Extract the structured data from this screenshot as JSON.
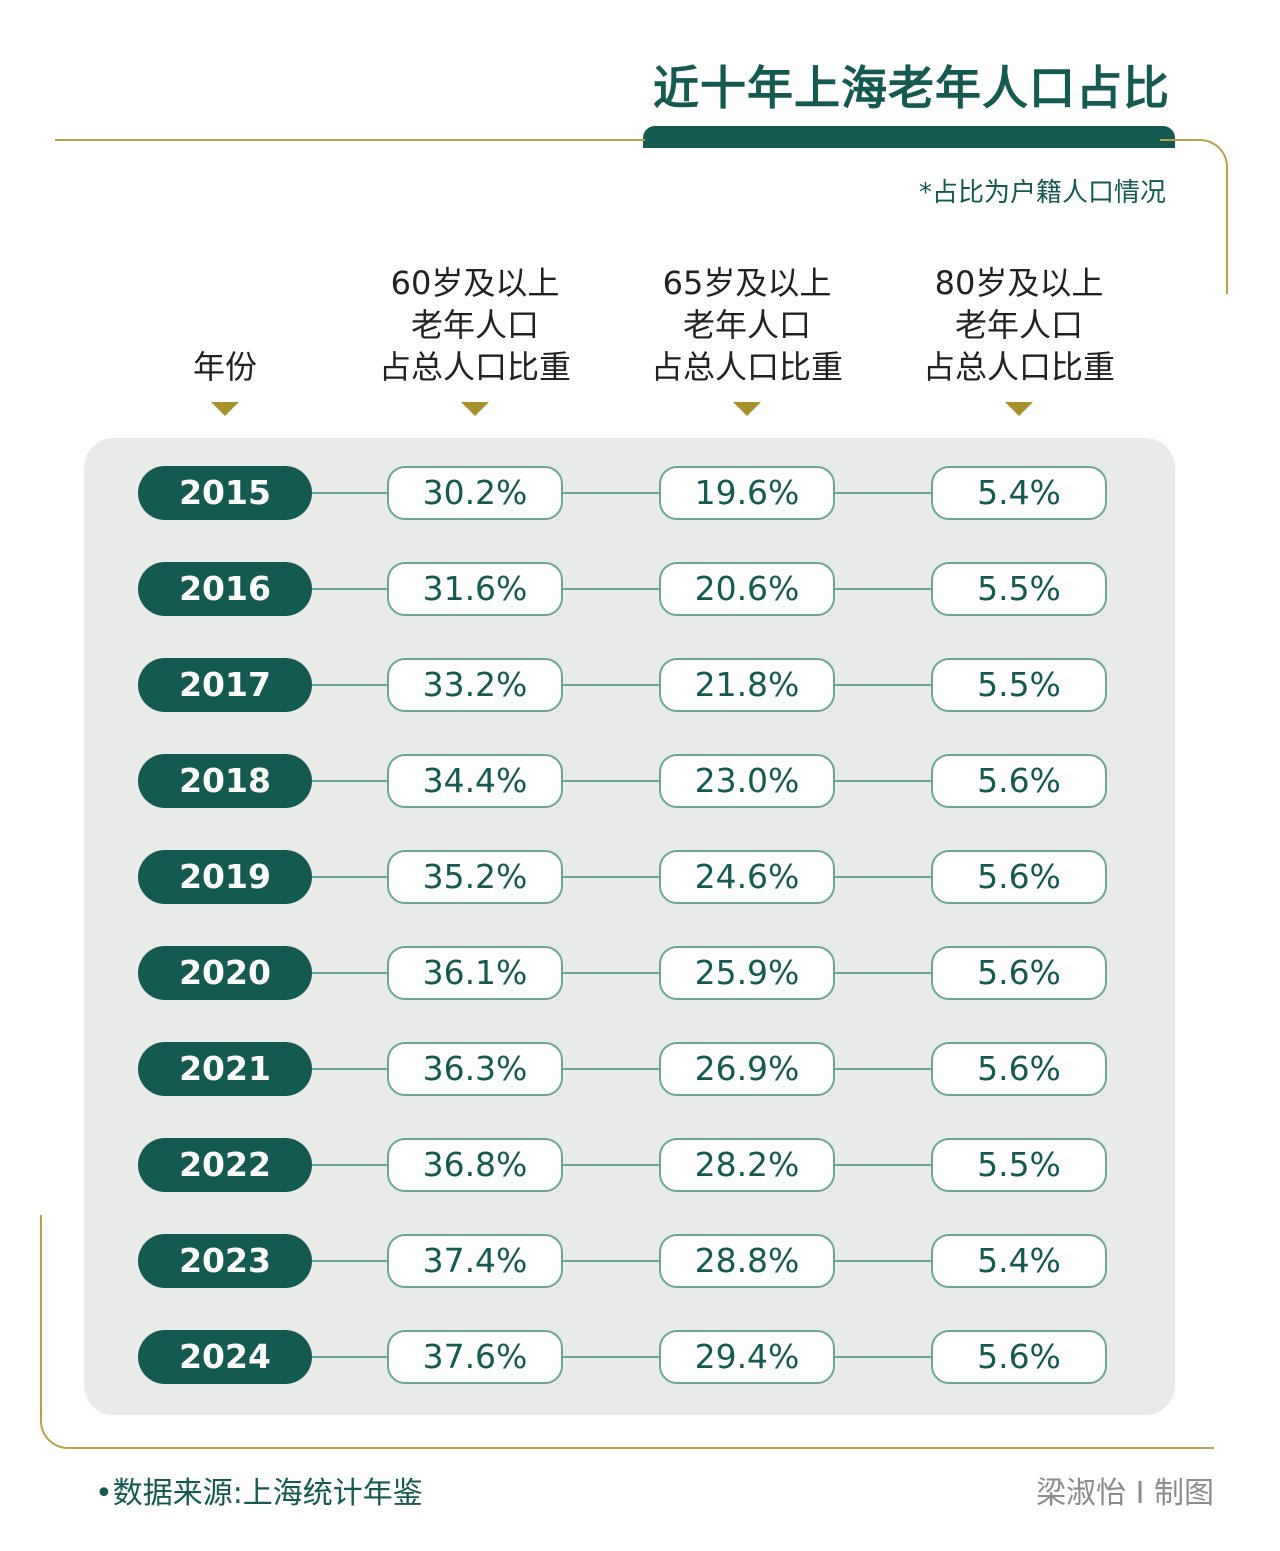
{
  "title": "近十年上海老年人口占比",
  "note": "*占比为户籍人口情况",
  "footer": {
    "source": "•数据来源:上海统计年鉴",
    "credit": "梁淑怡 I 制图"
  },
  "colors": {
    "primary": "#155a50",
    "gold": "#b7a24a",
    "panel": "#e8ebe8"
  },
  "chart_data": {
    "type": "table",
    "title": "近十年上海老年人口占比",
    "columns": [
      {
        "header": [
          "",
          "",
          "年份"
        ]
      },
      {
        "header": [
          "60岁及以上",
          "老年人口",
          "占总人口比重"
        ]
      },
      {
        "header": [
          "65岁及以上",
          "老年人口",
          "占总人口比重"
        ]
      },
      {
        "header": [
          "80岁及以上",
          "老年人口",
          "占总人口比重"
        ]
      }
    ],
    "rows": [
      [
        "2015",
        "30.2%",
        "19.6%",
        "5.4%"
      ],
      [
        "2016",
        "31.6%",
        "20.6%",
        "5.5%"
      ],
      [
        "2017",
        "33.2%",
        "21.8%",
        "5.5%"
      ],
      [
        "2018",
        "34.4%",
        "23.0%",
        "5.6%"
      ],
      [
        "2019",
        "35.2%",
        "24.6%",
        "5.6%"
      ],
      [
        "2020",
        "36.1%",
        "25.9%",
        "5.6%"
      ],
      [
        "2021",
        "36.3%",
        "26.9%",
        "5.6%"
      ],
      [
        "2022",
        "36.8%",
        "28.2%",
        "5.5%"
      ],
      [
        "2023",
        "37.4%",
        "28.8%",
        "5.4%"
      ],
      [
        "2024",
        "37.6%",
        "29.4%",
        "5.6%"
      ]
    ]
  }
}
